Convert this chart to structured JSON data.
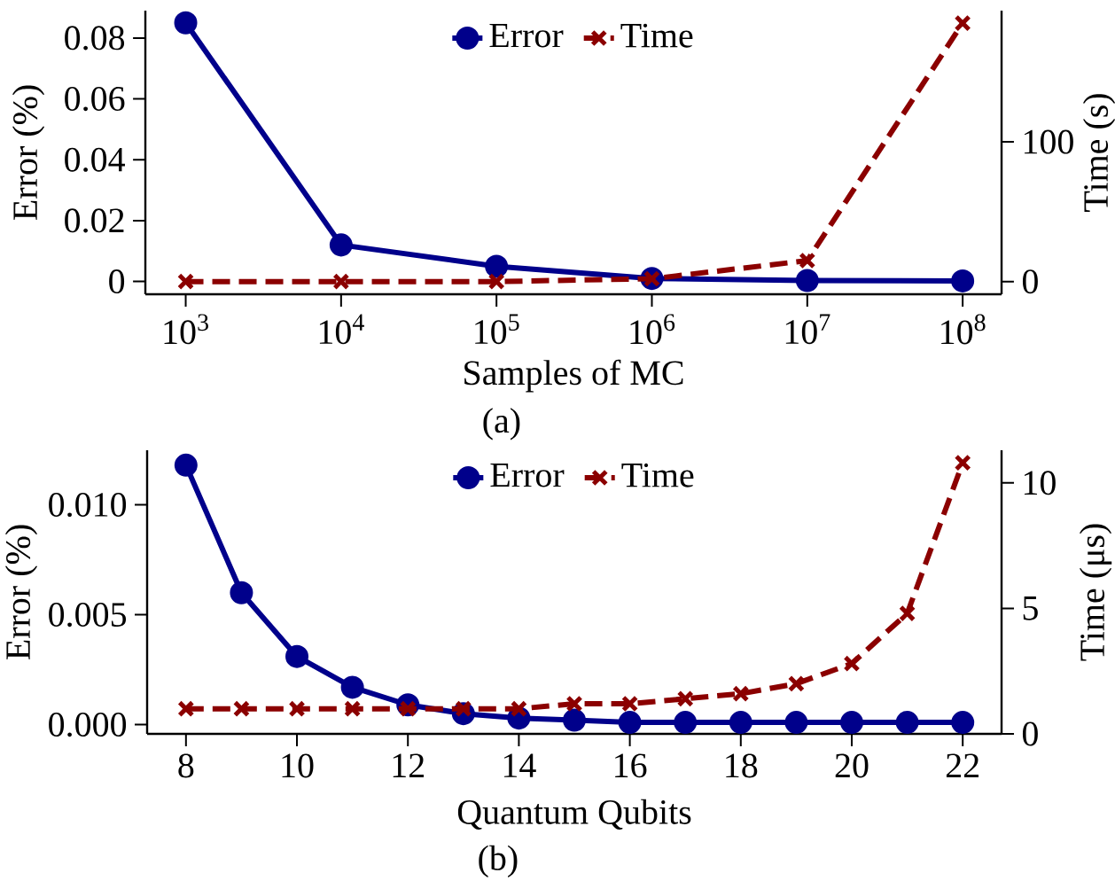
{
  "chart_data": [
    {
      "type": "line",
      "xlabel": "Samples of MC",
      "ylabel": "Error (%)",
      "y2label": "Time (s)",
      "log": "x",
      "legend": "top",
      "annotations": [
        "(a)"
      ],
      "x": [
        1000,
        10000,
        100000,
        1000000,
        10000000,
        100000000
      ],
      "xlim": [
        550,
        178000000
      ],
      "xticks": [
        {
          "value": 1000,
          "label": "10$^{3}$"
        },
        {
          "value": 10000,
          "label": "10$^{4}$"
        },
        {
          "value": 100000,
          "label": "10$^{5}$"
        },
        {
          "value": 1000000,
          "label": "10$^{6}$"
        },
        {
          "value": 10000000,
          "label": "10$^{7}$"
        },
        {
          "value": 100000000,
          "label": "10$^{8}$"
        }
      ],
      "ylim": [
        -0.0042,
        0.089
      ],
      "yticks": [
        0,
        0.02,
        0.04,
        0.06,
        0.08
      ],
      "y2lim": [
        -9.1,
        194
      ],
      "y2ticks": [
        0,
        100
      ],
      "series": [
        {
          "name": "Error",
          "color": "#00008b",
          "marker": "circle",
          "line_style": "solid",
          "values": [
            0.085,
            0.012,
            0.005,
            0.001,
            0.0003,
            0.0002
          ]
        },
        {
          "name": "Time",
          "color": "#8b0000",
          "marker": "cross",
          "line_style": "dashed",
          "axis": "y2",
          "values": [
            0,
            0,
            0,
            2,
            15,
            185
          ]
        }
      ]
    },
    {
      "type": "line",
      "xlabel": "Quantum Qubits",
      "ylabel": "Error (%)",
      "y2label": "Time (μs)",
      "legend": "top",
      "annotations": [
        "(b)"
      ],
      "x": [
        8,
        9,
        10,
        11,
        12,
        13,
        14,
        15,
        16,
        17,
        18,
        19,
        20,
        21,
        22
      ],
      "xlim": [
        7.3,
        22.7
      ],
      "xticks": [
        8,
        10,
        12,
        14,
        16,
        18,
        20,
        22
      ],
      "ylim": [
        -0.00042,
        0.01248
      ],
      "yticks": [
        {
          "value": 0,
          "label": "0.000"
        },
        {
          "value": 0.005,
          "label": "0.005"
        },
        {
          "value": 0.01,
          "label": "0.010"
        }
      ],
      "y2lim": [
        0,
        11.3
      ],
      "y2ticks": [
        0,
        5,
        10
      ],
      "series": [
        {
          "name": "Error",
          "color": "#00008b",
          "marker": "circle",
          "line_style": "solid",
          "values": [
            0.0118,
            0.006,
            0.0031,
            0.0017,
            0.0009,
            0.0005,
            0.0003,
            0.0002,
            0.0001,
            0.0001,
            0.0001,
            0.0001,
            0.0001,
            0.0001,
            0.0001
          ]
        },
        {
          "name": "Time",
          "color": "#8b0000",
          "marker": "cross",
          "line_style": "dashed",
          "axis": "y2",
          "values": [
            1.0,
            1.0,
            1.0,
            1.0,
            1.0,
            1.0,
            1.0,
            1.2,
            1.2,
            1.4,
            1.6,
            2.0,
            2.8,
            4.8,
            10.8
          ]
        }
      ]
    }
  ]
}
